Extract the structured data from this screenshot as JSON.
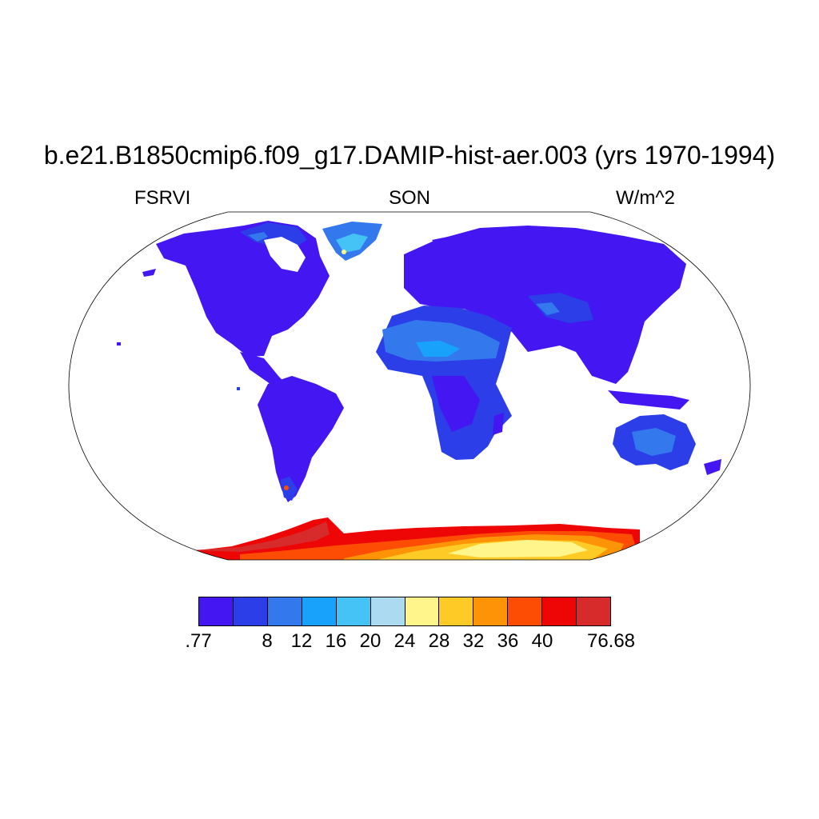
{
  "title": "b.e21.B1850cmip6.f09_g17.DAMIP-hist-aer.003 (yrs 1970-1994)",
  "left_label": "FSRVI",
  "center_label": "SON",
  "right_label": "W/m^2",
  "colorbar": {
    "colors": [
      "#4416f2",
      "#2b3ee8",
      "#3478ee",
      "#18a2fb",
      "#45c2f6",
      "#acdaf1",
      "#fff58a",
      "#fecb26",
      "#fd9408",
      "#fd4c03",
      "#ee0505",
      "#d72b2b"
    ],
    "labels": [
      ".77",
      "8",
      "12",
      "16",
      "20",
      "24",
      "28",
      "32",
      "36",
      "40",
      "76.68"
    ]
  }
}
